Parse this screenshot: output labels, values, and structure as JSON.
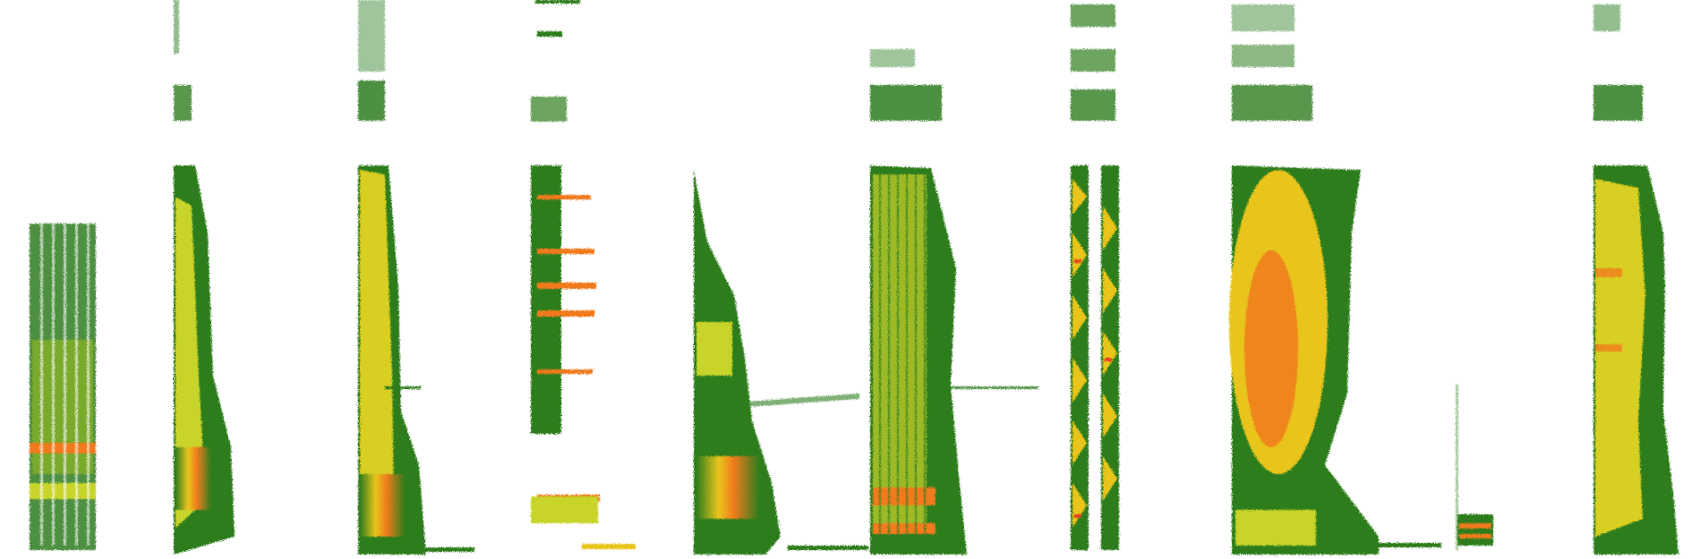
{
  "image": {
    "description_free": true,
    "colors": {
      "background": "#ffffff",
      "low": "#2e7d1f",
      "mid_low": "#4a9a24",
      "mid": "#c8d42a",
      "high": "#f2c81e",
      "peak": "#f07a1a",
      "max": "#e8401a"
    },
    "panels": [
      {
        "id": "panel-1",
        "shape": "dense-columns"
      },
      {
        "id": "panel-2",
        "shape": "tapering-column"
      },
      {
        "id": "panel-3",
        "shape": "tapering-column"
      },
      {
        "id": "panel-4",
        "shape": "harmonic-spikes"
      },
      {
        "id": "panel-5",
        "shape": "triangular-decay"
      },
      {
        "id": "panel-6",
        "shape": "striped-block"
      },
      {
        "id": "panel-7",
        "shape": "twin-chevrons"
      },
      {
        "id": "panel-8",
        "shape": "broad-blob"
      },
      {
        "id": "panel-9",
        "shape": "tone-burst"
      },
      {
        "id": "panel-10",
        "shape": "ragged-column"
      }
    ]
  }
}
